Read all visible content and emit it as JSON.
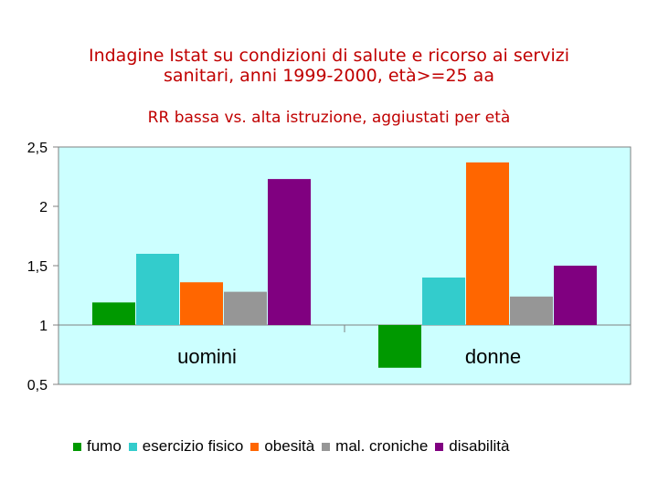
{
  "title_line1": "Indagine Istat su condizioni di salute e ricorso ai servizi",
  "title_line2": "sanitari, anni 1999-2000, età>=25 aa",
  "chart_data": {
    "type": "bar",
    "title": "Indagine Istat su condizioni di salute e ricorso ai servizi sanitari, anni 1999-2000, età>=25 aa",
    "subtitle": "RR bassa vs. alta istruzione, aggiustati per età",
    "categories": [
      "uomini",
      "donne"
    ],
    "baseline": 1,
    "ylim": [
      0.5,
      2.5
    ],
    "yticks": [
      2.5,
      2,
      1.5,
      1,
      0.5
    ],
    "ytick_labels": [
      "2,5",
      "2",
      "1,5",
      "1",
      "0,5"
    ],
    "grid": false,
    "legend_position": "bottom",
    "plot_background": "#ccffff",
    "series": [
      {
        "name": "fumo",
        "color": "#009900",
        "values": [
          1.19,
          0.64
        ]
      },
      {
        "name": "esercizio fisico",
        "color": "#33cccc",
        "values": [
          1.6,
          1.4
        ]
      },
      {
        "name": "obesità",
        "color": "#ff6600",
        "values": [
          1.36,
          2.37
        ]
      },
      {
        "name": "mal. croniche",
        "color": "#969696",
        "values": [
          1.28,
          1.24
        ]
      },
      {
        "name": "disabilità",
        "color": "#800080",
        "values": [
          2.23,
          1.5
        ]
      }
    ]
  }
}
